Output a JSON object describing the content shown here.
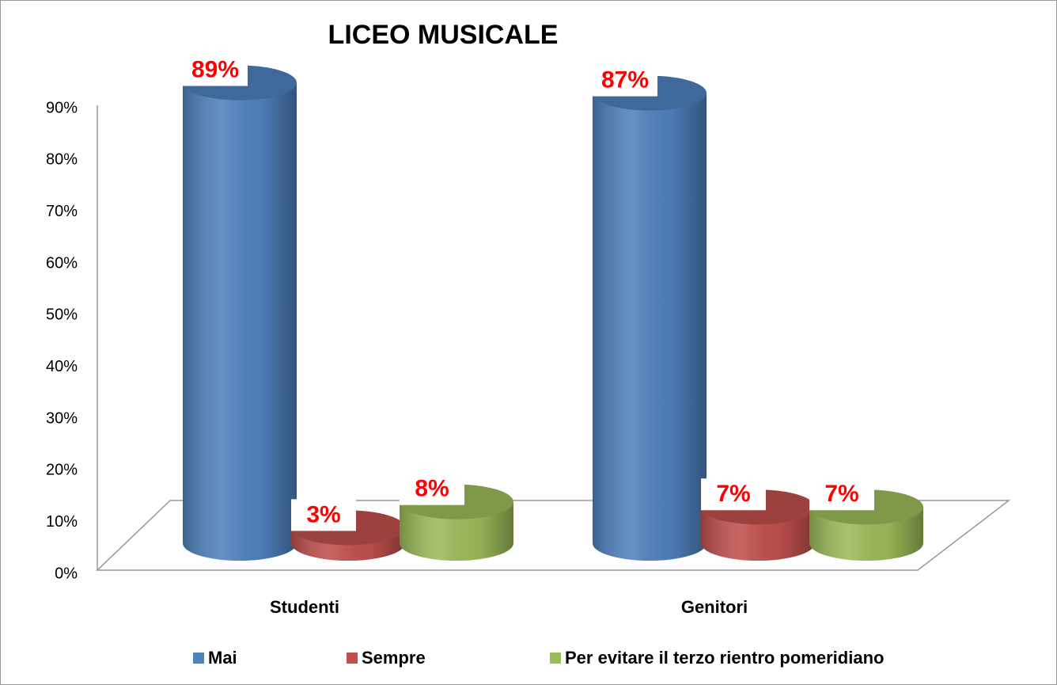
{
  "chart_data": {
    "type": "bar3d-cylinder",
    "title": "LICEO MUSICALE",
    "categories": [
      "Studenti",
      "Genitori"
    ],
    "series": [
      {
        "name": "Mai",
        "color": "#4f81bd",
        "values": [
          89,
          87
        ],
        "value_labels": [
          "89%",
          "87%"
        ]
      },
      {
        "name": "Sempre",
        "color": "#c0504d",
        "values": [
          3,
          7
        ],
        "value_labels": [
          "3%",
          "7%"
        ]
      },
      {
        "name": "Per evitare il terzo rientro pomeridiano",
        "color": "#9bbb59",
        "values": [
          8,
          7
        ],
        "value_labels": [
          "8%",
          "7%"
        ]
      }
    ],
    "ylim": [
      0,
      90
    ],
    "yticks": [
      {
        "value": 0,
        "label": "0%"
      },
      {
        "value": 10,
        "label": "10%"
      },
      {
        "value": 20,
        "label": "20%"
      },
      {
        "value": 30,
        "label": "30%"
      },
      {
        "value": 40,
        "label": "40%"
      },
      {
        "value": 50,
        "label": "50%"
      },
      {
        "value": 60,
        "label": "60%"
      },
      {
        "value": 70,
        "label": "70%"
      },
      {
        "value": 80,
        "label": "80%"
      },
      {
        "value": 90,
        "label": "90%"
      }
    ],
    "grid": false,
    "legend": "bottom"
  }
}
